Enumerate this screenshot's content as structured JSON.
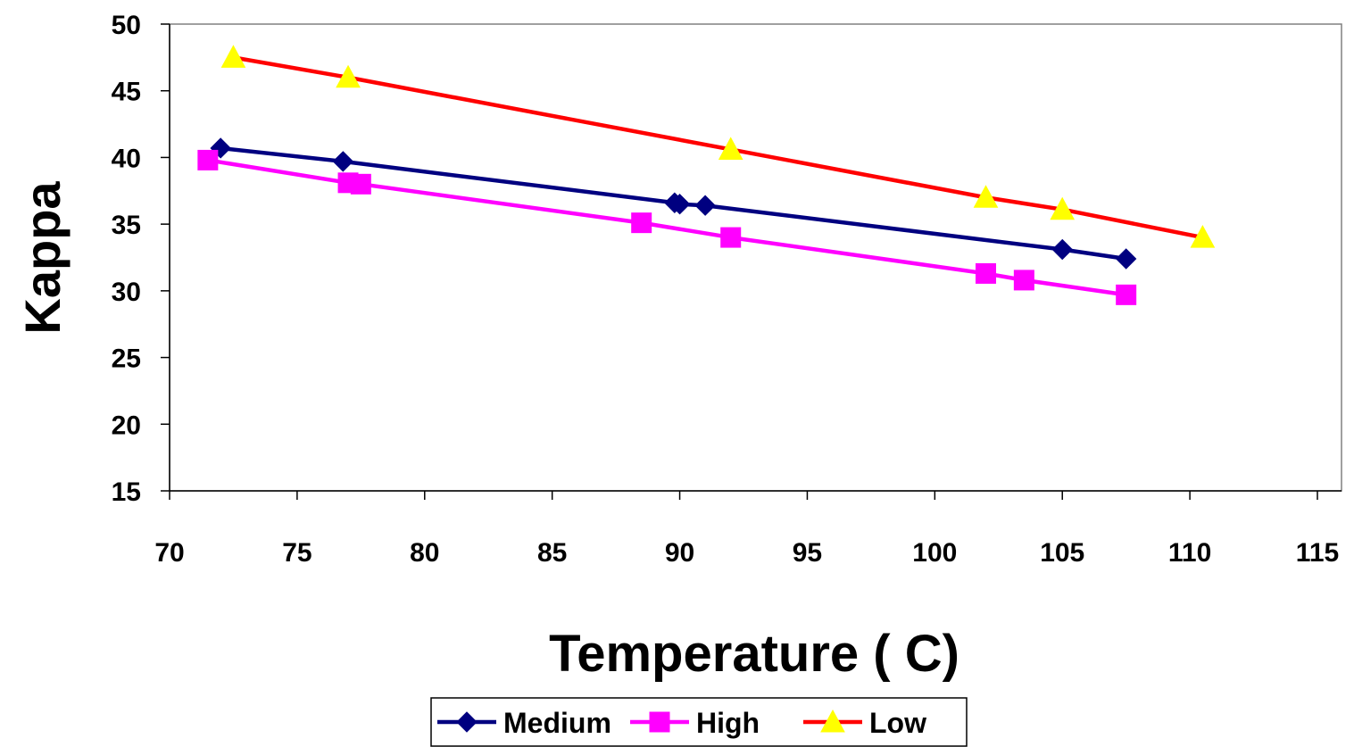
{
  "chart_data": {
    "type": "line",
    "xlabel": "Temperature ( C)",
    "ylabel": "Kappa",
    "xlim": [
      70,
      115
    ],
    "ylim": [
      15,
      50
    ],
    "xticks": [
      70,
      75,
      80,
      85,
      90,
      95,
      100,
      105,
      110,
      115
    ],
    "yticks": [
      15,
      20,
      25,
      30,
      35,
      40,
      45,
      50
    ],
    "grid": false,
    "legend_position": "bottom",
    "series": [
      {
        "name": "Medium",
        "color": "#000080",
        "marker": "diamond",
        "x": [
          72,
          76.8,
          89.8,
          90,
          91,
          105,
          107.5
        ],
        "y": [
          40.7,
          39.7,
          36.6,
          36.5,
          36.4,
          33.1,
          32.4
        ]
      },
      {
        "name": "High",
        "color": "#FF00FF",
        "marker": "square",
        "x": [
          71.5,
          77,
          77.5,
          88.5,
          92,
          102,
          103.5,
          107.5
        ],
        "y": [
          39.8,
          38.1,
          38.0,
          35.1,
          34.0,
          31.3,
          30.8,
          29.7
        ]
      },
      {
        "name": "Low",
        "color": "#FF0000",
        "marker": "triangle",
        "marker_fill": "#FFFF00",
        "x": [
          72.5,
          77,
          92,
          102,
          105,
          110.5
        ],
        "y": [
          47.5,
          46.0,
          40.6,
          37.0,
          36.1,
          34.0
        ]
      }
    ]
  }
}
